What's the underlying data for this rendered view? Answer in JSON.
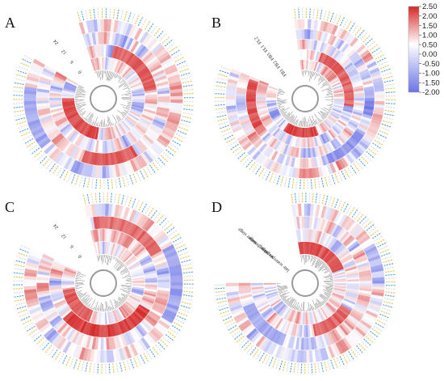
{
  "chart_data": [
    {
      "type": "heatmap",
      "title": "A",
      "layout": "circular",
      "tracks": [
        "0",
        "6",
        "12",
        "24"
      ],
      "gap_sector_deg": [
        300,
        342
      ],
      "hotspots": [
        {
          "track": 0,
          "from_deg": 190,
          "to_deg": 270,
          "value": 2.1
        },
        {
          "track": 1,
          "from_deg": 10,
          "to_deg": 80,
          "value": 1.8
        },
        {
          "track": 2,
          "from_deg": 150,
          "to_deg": 200,
          "value": 1.9
        },
        {
          "track": 3,
          "from_deg": 230,
          "to_deg": 280,
          "value": -1.2
        }
      ]
    },
    {
      "type": "heatmap",
      "title": "B",
      "layout": "circular",
      "tracks": [
        "FB1",
        "FB2",
        "FB3",
        "FL1",
        "FL2"
      ],
      "gap_sector_deg": [
        292,
        352
      ],
      "hotspots": [
        {
          "track": 0,
          "from_deg": 160,
          "to_deg": 215,
          "value": 2.2
        },
        {
          "track": 1,
          "from_deg": 20,
          "to_deg": 100,
          "value": 1.8
        },
        {
          "track": 2,
          "from_deg": 240,
          "to_deg": 290,
          "value": 2.0
        },
        {
          "track": 3,
          "from_deg": 120,
          "to_deg": 160,
          "value": -1.4
        },
        {
          "track": 4,
          "from_deg": 300,
          "to_deg": 345,
          "value": 1.6
        }
      ]
    },
    {
      "type": "heatmap",
      "title": "C",
      "layout": "circular",
      "tracks": [
        "0",
        "6",
        "12",
        "24"
      ],
      "gap_sector_deg": [
        296,
        346
      ],
      "hotspots": [
        {
          "track": 0,
          "from_deg": 200,
          "to_deg": 260,
          "value": 1.9
        },
        {
          "track": 1,
          "from_deg": 120,
          "to_deg": 230,
          "value": 2.2
        },
        {
          "track": 2,
          "from_deg": 350,
          "to_deg": 60,
          "value": 1.7
        },
        {
          "track": 3,
          "from_deg": 60,
          "to_deg": 120,
          "value": -1.3
        }
      ]
    },
    {
      "type": "heatmap",
      "title": "D",
      "layout": "circular",
      "tracks": [
        "late water stage",
        "pre stage",
        "dough stage",
        "mature stage"
      ],
      "gap_sector_deg": [
        270,
        350
      ],
      "hotspots": [
        {
          "track": 0,
          "from_deg": 350,
          "to_deg": 70,
          "value": 2.0
        },
        {
          "track": 1,
          "from_deg": 120,
          "to_deg": 170,
          "value": 1.8
        },
        {
          "track": 2,
          "from_deg": 200,
          "to_deg": 250,
          "value": -1.2
        },
        {
          "track": 3,
          "from_deg": 270,
          "to_deg": 300,
          "value": 2.1
        }
      ]
    }
  ],
  "colorbar": {
    "ticks": [
      "2.50",
      "2.00",
      "1.50",
      "1.00",
      "0.50",
      "0.00",
      "-0.50",
      "-1.00",
      "-1.50",
      "-2.00"
    ],
    "vmin": -2.0,
    "vmax": 2.5,
    "colors": {
      "low": "#6b73e6",
      "mid": "#ffffff",
      "high": "#d62728"
    }
  }
}
